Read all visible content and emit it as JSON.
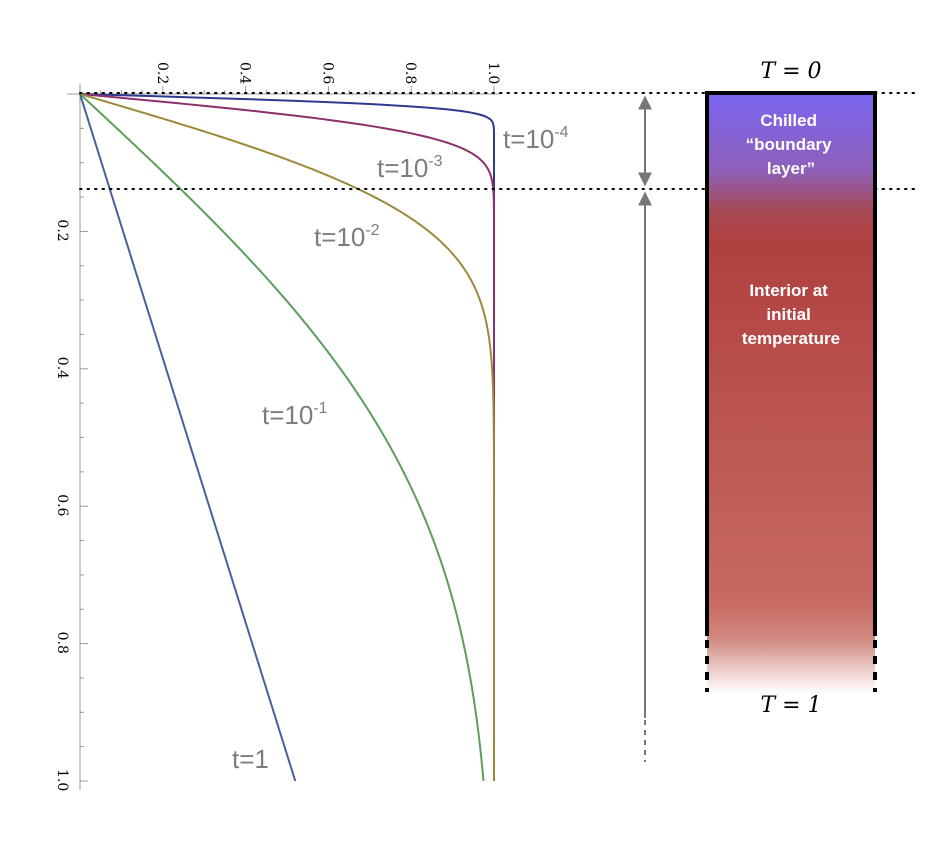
{
  "chart_data": {
    "type": "line",
    "title": "",
    "xlabel": "",
    "ylabel": "",
    "xlim": [
      0,
      1.0
    ],
    "ylim": [
      1.0,
      0
    ],
    "x_axis_position": "top",
    "y_inverted": true,
    "x_ticks": [
      "0.2",
      "0.4",
      "0.6",
      "0.8",
      "1.0"
    ],
    "y_ticks": [
      "0.2",
      "0.4",
      "0.6",
      "0.8",
      "1.0"
    ],
    "series": [
      {
        "label_base": "t=10",
        "label_exp": "-4",
        "t": 0.0001,
        "color": "#2f3a8f"
      },
      {
        "label_base": "t=10",
        "label_exp": "-3",
        "t": 0.001,
        "color": "#8e2f6e"
      },
      {
        "label_base": "t=10",
        "label_exp": "-2",
        "t": 0.01,
        "color": "#9c8a3a"
      },
      {
        "label_base": "t=10",
        "label_exp": "-1",
        "t": 0.1,
        "color": "#5c9e5a"
      },
      {
        "label_base": "t=1",
        "label_exp": "",
        "t": 1,
        "color": "#4a5fa0"
      }
    ],
    "boundary_layer_depth": 0.14
  },
  "column": {
    "top_label": "T = 0",
    "bottom_label": "T = 1",
    "boundary_layer_label": [
      "Chilled",
      "“boundary",
      "layer”"
    ],
    "interior_label": [
      "Interior at",
      "initial",
      "temperature"
    ],
    "colors": {
      "cold": "#7b65f0",
      "hot": "#b04040",
      "interior_bottom": "#c96f66",
      "border": "#000000"
    }
  }
}
